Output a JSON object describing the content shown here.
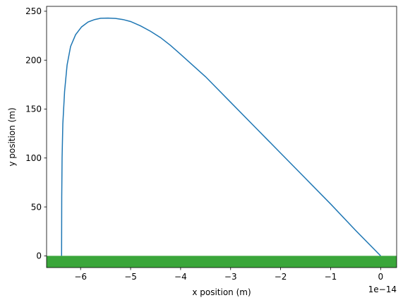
{
  "chart_data": {
    "type": "line",
    "xlabel": "x position (m)",
    "ylabel": "y position (m)",
    "x_offset_text": "1e−14",
    "xlim": [
      -6.68,
      0.32
    ],
    "ylim": [
      -12,
      255
    ],
    "x_ticks": [
      -6,
      -5,
      -4,
      -3,
      -2,
      -1,
      0
    ],
    "x_tick_labels": [
      "−6",
      "−5",
      "−4",
      "−3",
      "−2",
      "−1",
      "0"
    ],
    "y_ticks": [
      0,
      50,
      100,
      150,
      200,
      250
    ],
    "y_tick_labels": [
      "0",
      "50",
      "100",
      "150",
      "200",
      "250"
    ],
    "grid": false,
    "ground": {
      "y_top": 0,
      "color": "#3aa63a"
    },
    "series": [
      {
        "color": "#1f77b4",
        "x": [
          -6.38,
          -6.377,
          -6.37,
          -6.355,
          -6.32,
          -6.27,
          -6.2,
          -6.1,
          -5.98,
          -5.85,
          -5.72,
          -5.6,
          -5.45,
          -5.3,
          -5.15,
          -5.0,
          -4.8,
          -4.6,
          -4.4,
          -4.2,
          -4.0,
          -3.5,
          -3.0,
          -2.5,
          -2.0,
          -1.5,
          -1.0,
          -0.5,
          0.0
        ],
        "y": [
          0,
          60,
          100,
          135,
          168,
          195,
          214,
          226,
          234,
          239,
          241.5,
          242.8,
          243,
          242.6,
          241.5,
          239.5,
          235,
          229.5,
          223,
          215,
          206,
          183,
          157,
          131,
          105,
          79,
          53,
          26,
          0
        ]
      }
    ]
  }
}
